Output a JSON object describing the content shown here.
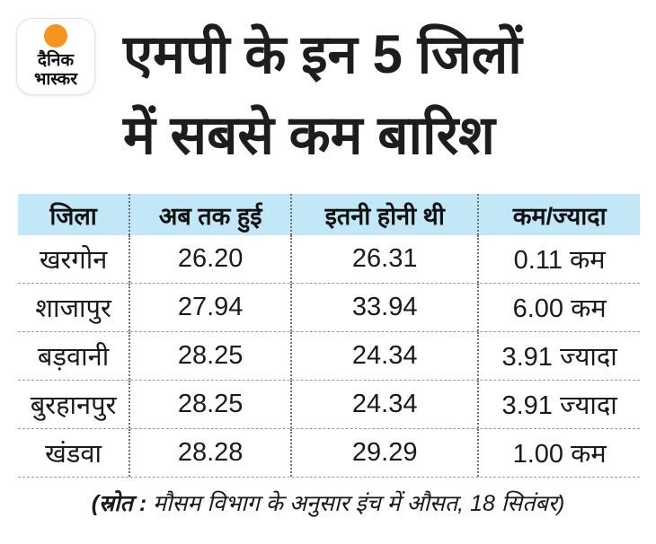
{
  "brand": {
    "name": "Dainik Bhaskar",
    "logo_line1": "दैनिक",
    "logo_line2": "भास्कर",
    "logo_dot_color": "#f7941e"
  },
  "title": {
    "line1": "एमपी के इन 5 जिलों",
    "line2": "में सबसे कम बारिश"
  },
  "table": {
    "header_bg": "#c2e7f7",
    "columns": [
      "जिला",
      "अब तक हुई",
      "इतनी होनी थी",
      "कम/ज्यादा"
    ],
    "rows": [
      {
        "district": "खरगोन",
        "so_far": "26.20",
        "expected": "26.31",
        "diff": "0.11 कम"
      },
      {
        "district": "शाजापुर",
        "so_far": "27.94",
        "expected": "33.94",
        "diff": "6.00 कम"
      },
      {
        "district": "बड़वानी",
        "so_far": "28.25",
        "expected": "24.34",
        "diff": "3.91 ज्यादा"
      },
      {
        "district": "बुरहानपुर",
        "so_far": "28.25",
        "expected": "24.34",
        "diff": "3.91 ज्यादा"
      },
      {
        "district": "खंडवा",
        "so_far": "28.28",
        "expected": "29.29",
        "diff": "1.00 कम"
      }
    ]
  },
  "footer": {
    "source_label": "(स्रोत :",
    "source_text": " मौसम विभाग के अनुसार इंच में औसत, 18 सितंबर)"
  },
  "chart_data": {
    "type": "table",
    "title": "एमपी के इन 5 जिलों में सबसे कम बारिश",
    "columns": [
      "जिला",
      "अब तक हुई",
      "इतनी होनी थी",
      "कम/ज्यादा"
    ],
    "rows": [
      [
        "खरगोन",
        26.2,
        26.31,
        "0.11 कम"
      ],
      [
        "शाजापुर",
        27.94,
        33.94,
        "6.00 कम"
      ],
      [
        "बड़वानी",
        28.25,
        24.34,
        "3.91 ज्यादा"
      ],
      [
        "बुरहानपुर",
        28.25,
        24.34,
        "3.91 ज्यादा"
      ],
      [
        "खंडवा",
        28.28,
        29.29,
        "1.00 कम"
      ]
    ],
    "units": "inches (average)",
    "note": "(स्रोत : मौसम विभाग के अनुसार इंच में औसत, 18 सितंबर)"
  },
  "colors": {
    "background": "#ffffff",
    "header_band": "#c2e7f7",
    "text": "#1d1d1b",
    "accent_orange": "#f7941e",
    "divider_gray": "#9b9b9b"
  }
}
